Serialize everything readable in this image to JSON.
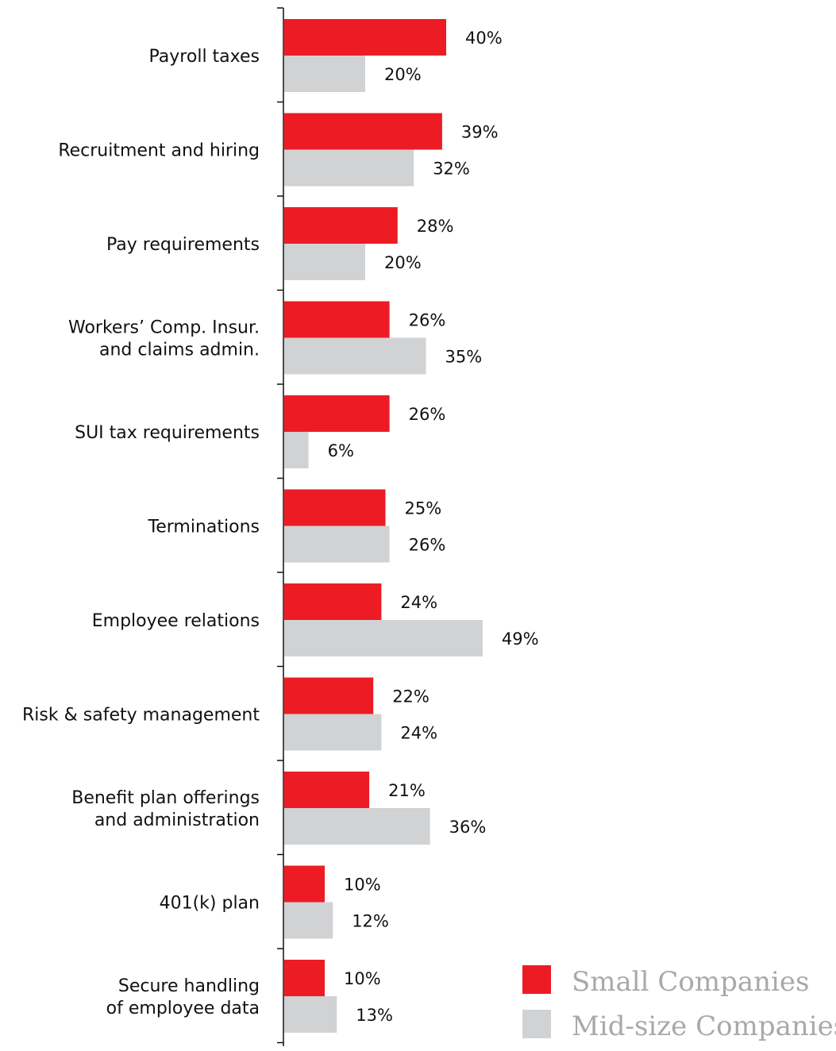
{
  "chart_data": {
    "type": "bar",
    "orientation": "horizontal",
    "categories": [
      [
        "Payroll taxes"
      ],
      [
        "Recruitment and hiring"
      ],
      [
        "Pay requirements"
      ],
      [
        "Workers’ Comp. Insur.",
        "and claims admin."
      ],
      [
        "SUI tax requirements"
      ],
      [
        "Terminations"
      ],
      [
        "Employee relations"
      ],
      [
        "Risk & safety management"
      ],
      [
        "Benefit plan offerings",
        "and administration"
      ],
      [
        "401(k) plan"
      ],
      [
        "Secure handling",
        "of employee data"
      ]
    ],
    "series": [
      {
        "name": "Small Companies",
        "color": "#ed1c24",
        "values": [
          40,
          39,
          28,
          26,
          26,
          25,
          24,
          22,
          21,
          10,
          10
        ],
        "labels": [
          "40%",
          "39%",
          "28%",
          "26%",
          "26%",
          "25%",
          "24%",
          "22%",
          "21%",
          "10%",
          "10%"
        ]
      },
      {
        "name": "Mid-size Companies",
        "color": "#d1d2d4",
        "values": [
          20,
          32,
          20,
          35,
          6,
          26,
          49,
          24,
          36,
          12,
          13
        ],
        "labels": [
          "20%",
          "32%",
          "20%",
          "35%",
          "6%",
          "26%",
          "49%",
          "24%",
          "36%",
          "12%",
          "13%"
        ]
      }
    ],
    "xlim": [
      0,
      50
    ],
    "legend": {
      "position": "bottom-right",
      "text_color": "#a7a9ac"
    },
    "axis_color": "#111111"
  }
}
